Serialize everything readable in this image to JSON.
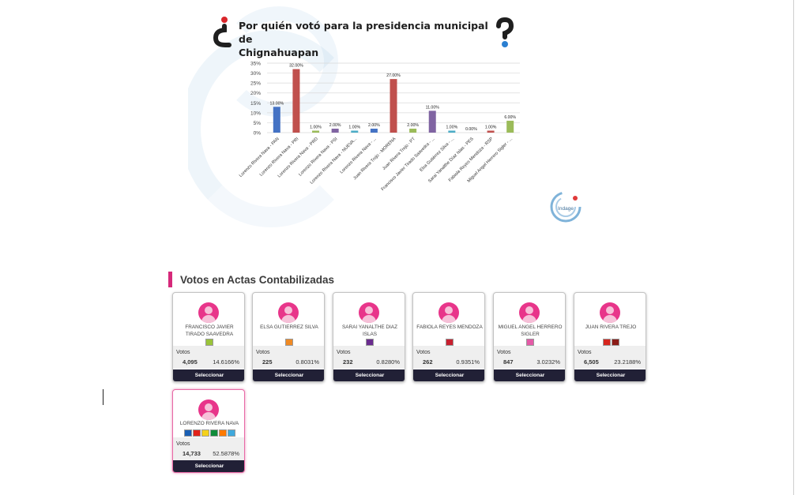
{
  "chart": {
    "title_line1": "Por quién votó para la presidencia municipal de",
    "title_line2": "Chignahuapan",
    "logo_text": "Indage"
  },
  "chart_data": {
    "type": "bar",
    "title": "¿Por quién votó para la presidencia municipal de Chignahuapan?",
    "categories": [
      "Lorenzo Rivera Nava - PAN",
      "Lorenzo Rivera Nava - PRI",
      "Lorenzo Rivera Nava - PRD",
      "Lorenzo Rivera Nava - PSI",
      "Lorenzo Rivera Nava - NUEVA...",
      "Lorenzo Rivera Nava - ...",
      "Juan Rivera Trejo - MORENA",
      "Juan Rivera Trejo - PT",
      "Francisco Javier Tirado Saavedra - ...",
      "Elsa Gutiérrez Silva - ...",
      "Sarai Yanalthe Díaz Islas - PES",
      "Fabiola Reyes Mendoza - RSP",
      "Miguel Angel Herrero Sigler - ..."
    ],
    "values": [
      13.0,
      32.0,
      1.0,
      2.0,
      1.0,
      2.0,
      27.0,
      2.0,
      11.0,
      1.0,
      0.0,
      1.0,
      6.0
    ],
    "value_labels": [
      "13.00%",
      "32.00%",
      "1.00%",
      "2.00%",
      "1.00%",
      "2.00%",
      "27.00%",
      "2.00%",
      "11.00%",
      "1.00%",
      "0.00%",
      "1.00%",
      "6.00%"
    ],
    "colors": [
      "#4472c4",
      "#c0504d",
      "#9bbb59",
      "#8064a2",
      "#4bacc6",
      "#4472c4",
      "#c0504d",
      "#9bbb59",
      "#8064a2",
      "#4bacc6",
      "#f79646",
      "#c0504d",
      "#9bbb59"
    ],
    "yticks": [
      "35%",
      "30%",
      "25%",
      "20%",
      "15%",
      "10%",
      "5%",
      "0%"
    ],
    "ylim": [
      0,
      35
    ],
    "grid": true,
    "xlabel": "",
    "ylabel": ""
  },
  "section": {
    "title": "Votos en Actas Contabilizadas"
  },
  "candidates": [
    {
      "name": "FRANCISCO JAVIER TIRADO SAAVEDRA",
      "votes_label": "Votos",
      "votes": "4,095",
      "pct": "14.6166%",
      "button": "Seleccionar",
      "party_colors": [
        "#9ac43a"
      ]
    },
    {
      "name": "ELSA GUTIERREZ SILVA",
      "votes_label": "Votos",
      "votes": "225",
      "pct": "0.8031%",
      "button": "Seleccionar",
      "party_colors": [
        "#f08a24"
      ]
    },
    {
      "name": "SARAI YANALTHE DIAZ ISLAS",
      "votes_label": "Votos",
      "votes": "232",
      "pct": "0.8280%",
      "button": "Seleccionar",
      "party_colors": [
        "#6a2c8f"
      ]
    },
    {
      "name": "FABIOLA REYES MENDOZA",
      "votes_label": "Votos",
      "votes": "262",
      "pct": "0.9351%",
      "button": "Seleccionar",
      "party_colors": [
        "#c8202f"
      ]
    },
    {
      "name": "MIGUEL ANGEL HERRERO SIGLER",
      "votes_label": "Votos",
      "votes": "847",
      "pct": "3.0232%",
      "button": "Seleccionar",
      "party_colors": [
        "#e45aa7"
      ]
    },
    {
      "name": "JUAN RIVERA TREJO",
      "votes_label": "Votos",
      "votes": "6,505",
      "pct": "23.2188%",
      "button": "Seleccionar",
      "party_colors": [
        "#d7261e",
        "#8b1b17"
      ]
    },
    {
      "name": "LORENZO RIVERA NAVA",
      "votes_label": "Votos",
      "votes": "14,733",
      "pct": "52.5878%",
      "button": "Seleccionar",
      "party_colors": [
        "#1a5fb4",
        "#e2231a",
        "#f4d11b",
        "#0f8c3a",
        "#ff7a00",
        "#3fa9dd"
      ]
    }
  ]
}
